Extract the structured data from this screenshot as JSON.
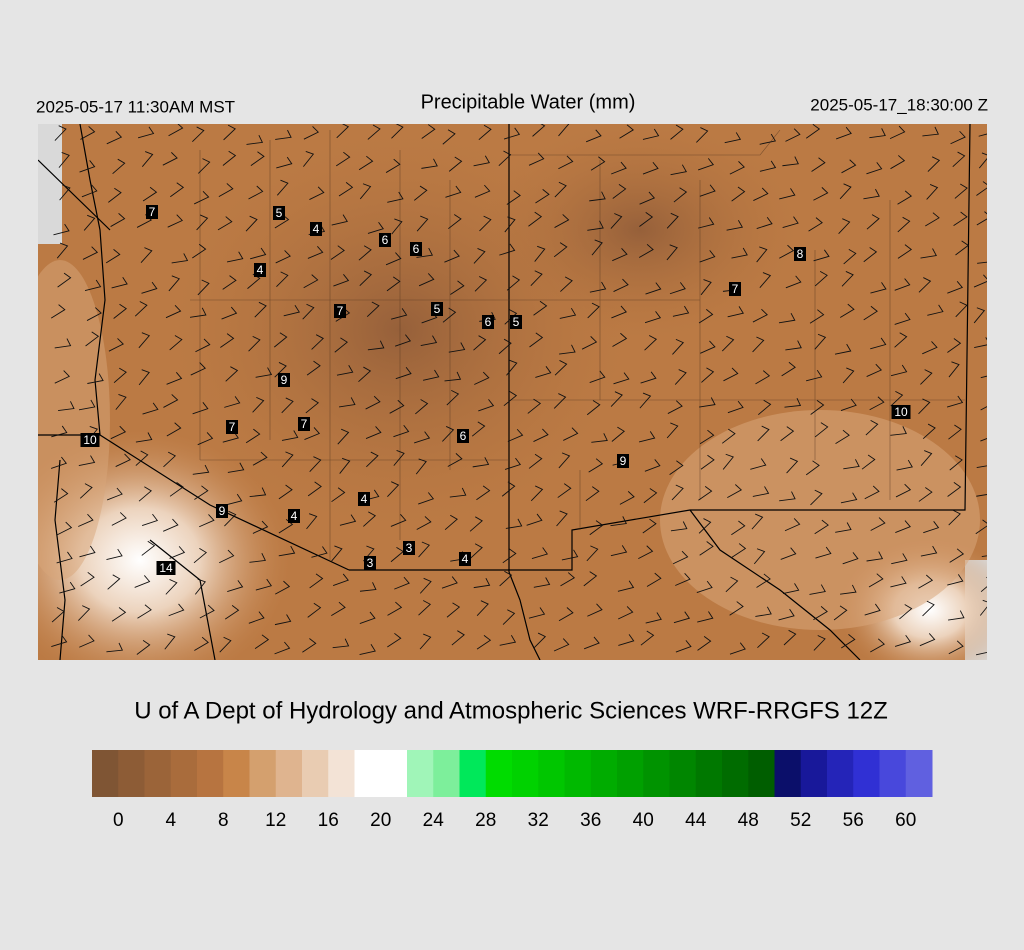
{
  "header": {
    "left": "2025-05-17 11:30AM MST",
    "title": "Precipitable Water (mm)",
    "right": "2025-05-17_18:30:00 Z"
  },
  "map": {
    "labels": [
      7,
      5,
      4,
      6,
      6,
      4,
      7,
      5,
      6,
      5,
      8,
      7,
      9,
      7,
      7,
      6,
      10,
      10,
      9,
      9,
      4,
      4,
      3,
      3,
      4,
      14
    ]
  },
  "credit": "U of A Dept of Hydrology and Atmospheric Sciences WRF-RRGFS 12Z",
  "colorbar": {
    "colors": [
      "#7f5534",
      "#8d5c36",
      "#9b6439",
      "#a96c3c",
      "#b77440",
      "#c88549",
      "#d4a06e",
      "#dfb48f",
      "#e9ccb2",
      "#f3e3d6",
      "#ffffff",
      "#ffffff",
      "#a0f5b8",
      "#7def9b",
      "#00e85a",
      "#00dc00",
      "#00d200",
      "#00c600",
      "#00b900",
      "#00ac00",
      "#00a000",
      "#009300",
      "#008600",
      "#007800",
      "#006c00",
      "#005e00",
      "#0b0f6a",
      "#18189a",
      "#2424b8",
      "#3030d4",
      "#4848dc",
      "#6060e0"
    ],
    "ticks": [
      0,
      4,
      8,
      12,
      16,
      20,
      24,
      28,
      32,
      36,
      40,
      44,
      48,
      52,
      56,
      60
    ]
  }
}
